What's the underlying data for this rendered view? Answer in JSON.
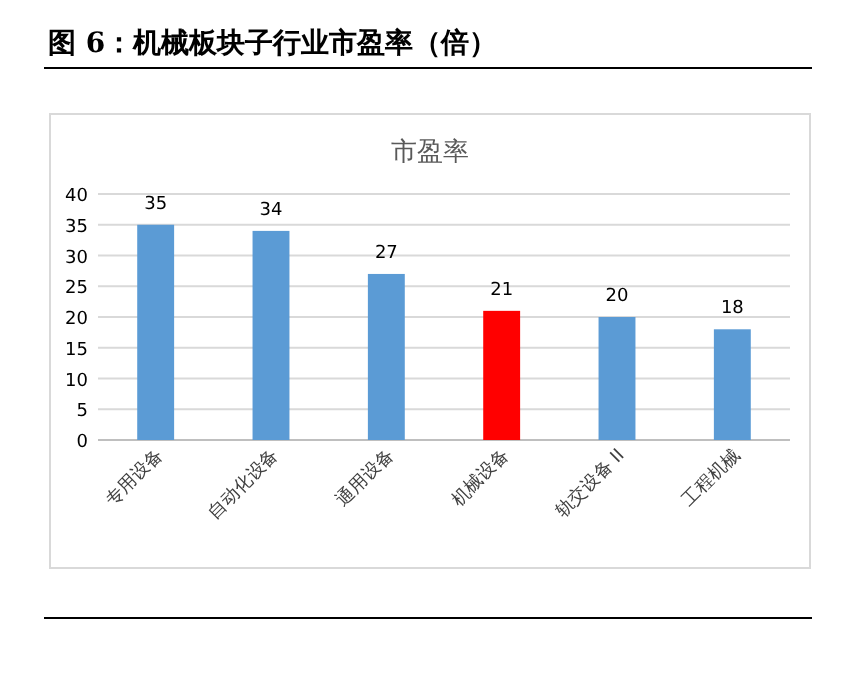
{
  "chart_data": {
    "type": "bar",
    "title": "图 6：机械板块子行业市盈率（倍）",
    "subtitle": "市盈率",
    "categories": [
      "专用设备",
      "自动化设备",
      "通用设备",
      "机械设备",
      "轨交设备 II",
      "工程机械"
    ],
    "values": [
      35,
      34,
      27,
      21,
      20,
      18
    ],
    "colors": [
      "#5b9bd5",
      "#5b9bd5",
      "#5b9bd5",
      "#ff0000",
      "#5b9bd5",
      "#5b9bd5"
    ],
    "ylim": [
      0,
      40
    ],
    "yticks": [
      0,
      5,
      10,
      15,
      20,
      25,
      30,
      35,
      40
    ],
    "grid": "y",
    "data_labels": true
  }
}
